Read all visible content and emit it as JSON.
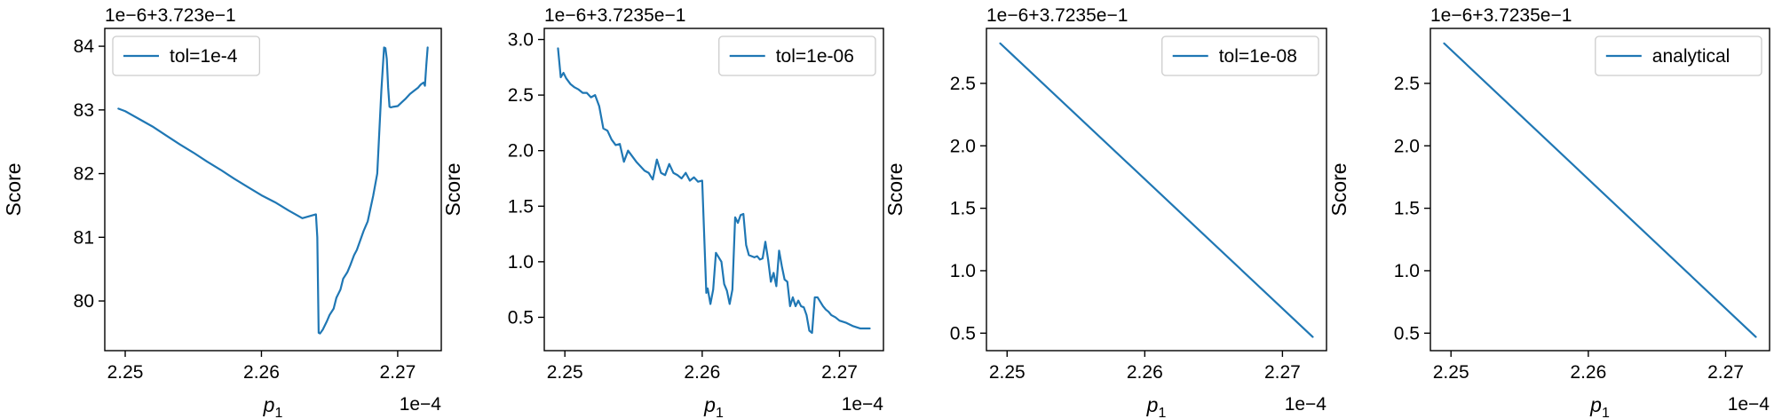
{
  "figure": {
    "colors": {
      "line": "#1f77b4",
      "axes": "#000000",
      "legend_border": "#cccccc",
      "background": "#ffffff"
    }
  },
  "chart_data": [
    {
      "type": "line",
      "offset_label": "1e−6+3.723e−1",
      "xlabel_base": "p",
      "xlabel_sub": "1",
      "ylabel": "Score",
      "x_offset_label": "1e−4",
      "xlim": [
        2.2485,
        2.2732
      ],
      "ylim": [
        79.22,
        84.28
      ],
      "xticks": [
        2.25,
        2.26,
        2.27
      ],
      "xtick_labels": [
        "2.25",
        "2.26",
        "2.27"
      ],
      "yticks": [
        80,
        81,
        82,
        83,
        84
      ],
      "ytick_labels": [
        "80",
        "81",
        "82",
        "83",
        "84"
      ],
      "legend": {
        "position": "upper left",
        "label": "tol=1e-4"
      },
      "series": [
        {
          "name": "tol=1e-4",
          "x": [
            2.2495,
            2.25,
            2.251,
            2.252,
            2.253,
            2.254,
            2.255,
            2.256,
            2.257,
            2.258,
            2.259,
            2.26,
            2.261,
            2.262,
            2.263,
            2.264,
            2.2641,
            2.2642,
            2.2643,
            2.2645,
            2.2648,
            2.265,
            2.2653,
            2.2655,
            2.2658,
            2.266,
            2.2663,
            2.2665,
            2.2668,
            2.267,
            2.2673,
            2.2675,
            2.2678,
            2.268,
            2.2682,
            2.2685,
            2.2688,
            2.269,
            2.2691,
            2.2692,
            2.2693,
            2.2694,
            2.2695,
            2.2697,
            2.27,
            2.2703,
            2.2706,
            2.2709,
            2.2712,
            2.2715,
            2.2717,
            2.2719,
            2.272,
            2.2721,
            2.2722
          ],
          "y": [
            83.02,
            82.98,
            82.86,
            82.74,
            82.6,
            82.46,
            82.33,
            82.19,
            82.06,
            81.92,
            81.79,
            81.66,
            81.55,
            81.42,
            81.3,
            81.36,
            81.0,
            79.5,
            79.49,
            79.55,
            79.68,
            79.78,
            79.88,
            80.05,
            80.18,
            80.35,
            80.45,
            80.55,
            80.72,
            80.8,
            80.98,
            81.1,
            81.25,
            81.45,
            81.65,
            82.0,
            83.3,
            83.98,
            83.97,
            83.8,
            83.35,
            83.05,
            83.04,
            83.05,
            83.06,
            83.12,
            83.18,
            83.25,
            83.3,
            83.35,
            83.4,
            83.43,
            83.38,
            83.7,
            83.98
          ]
        }
      ]
    },
    {
      "type": "line",
      "offset_label": "1e−6+3.7235e−1",
      "xlabel_base": "p",
      "xlabel_sub": "1",
      "ylabel": "Score",
      "x_offset_label": "1e−4",
      "xlim": [
        2.2485,
        2.2732
      ],
      "ylim": [
        0.2,
        3.1
      ],
      "xticks": [
        2.25,
        2.26,
        2.27
      ],
      "xtick_labels": [
        "2.25",
        "2.26",
        "2.27"
      ],
      "yticks": [
        0.5,
        1.0,
        1.5,
        2.0,
        2.5,
        3.0
      ],
      "ytick_labels": [
        "0.5",
        "1.0",
        "1.5",
        "2.0",
        "2.5",
        "3.0"
      ],
      "legend": {
        "position": "upper right",
        "label": "tol=1e-06"
      },
      "series": [
        {
          "name": "tol=1e-06",
          "x": [
            2.2495,
            2.2497,
            2.2499,
            2.2501,
            2.2504,
            2.2507,
            2.251,
            2.2513,
            2.2516,
            2.2519,
            2.2522,
            2.2525,
            2.2528,
            2.2531,
            2.2534,
            2.2537,
            2.254,
            2.2543,
            2.2546,
            2.2549,
            2.2552,
            2.2555,
            2.2558,
            2.2561,
            2.2564,
            2.2567,
            2.257,
            2.2573,
            2.2576,
            2.2579,
            2.2582,
            2.2585,
            2.2588,
            2.2591,
            2.2594,
            2.2597,
            2.26,
            2.2603,
            2.2604,
            2.2606,
            2.2608,
            2.261,
            2.2612,
            2.2614,
            2.2616,
            2.2618,
            2.262,
            2.2622,
            2.2624,
            2.2626,
            2.2628,
            2.263,
            2.2632,
            2.2634,
            2.2636,
            2.2638,
            2.264,
            2.2642,
            2.2644,
            2.2646,
            2.2648,
            2.265,
            2.2652,
            2.2654,
            2.2656,
            2.2658,
            2.266,
            2.2662,
            2.2664,
            2.2666,
            2.2668,
            2.267,
            2.2672,
            2.2674,
            2.2676,
            2.2678,
            2.268,
            2.2682,
            2.2684,
            2.2686,
            2.2688,
            2.269,
            2.2692,
            2.2694,
            2.2697,
            2.27,
            2.2705,
            2.271,
            2.2715,
            2.272,
            2.2722
          ],
          "y": [
            2.92,
            2.66,
            2.7,
            2.65,
            2.6,
            2.57,
            2.55,
            2.52,
            2.52,
            2.48,
            2.5,
            2.4,
            2.2,
            2.18,
            2.1,
            2.05,
            2.06,
            1.9,
            2.0,
            1.95,
            1.9,
            1.86,
            1.82,
            1.8,
            1.74,
            1.92,
            1.8,
            1.78,
            1.88,
            1.8,
            1.78,
            1.75,
            1.8,
            1.73,
            1.76,
            1.72,
            1.73,
            0.72,
            0.76,
            0.62,
            0.75,
            1.08,
            1.04,
            1.0,
            0.8,
            0.74,
            0.62,
            0.75,
            1.4,
            1.35,
            1.42,
            1.43,
            1.15,
            1.06,
            1.05,
            1.04,
            1.05,
            1.02,
            1.03,
            1.18,
            1.02,
            0.82,
            0.9,
            0.78,
            1.1,
            0.96,
            0.84,
            0.82,
            0.6,
            0.68,
            0.6,
            0.65,
            0.6,
            0.59,
            0.52,
            0.38,
            0.36,
            0.68,
            0.68,
            0.64,
            0.6,
            0.57,
            0.55,
            0.52,
            0.5,
            0.47,
            0.45,
            0.42,
            0.4,
            0.4,
            0.4
          ]
        }
      ]
    },
    {
      "type": "line",
      "offset_label": "1e−6+3.7235e−1",
      "xlabel_base": "p",
      "xlabel_sub": "1",
      "ylabel": "Score",
      "x_offset_label": "1e−4",
      "xlim": [
        2.2485,
        2.2732
      ],
      "ylim": [
        0.36,
        2.94
      ],
      "xticks": [
        2.25,
        2.26,
        2.27
      ],
      "xtick_labels": [
        "2.25",
        "2.26",
        "2.27"
      ],
      "yticks": [
        0.5,
        1.0,
        1.5,
        2.0,
        2.5
      ],
      "ytick_labels": [
        "0.5",
        "1.0",
        "1.5",
        "2.0",
        "2.5"
      ],
      "legend": {
        "position": "upper right",
        "label": "tol=1e-08"
      },
      "series": [
        {
          "name": "tol=1e-08",
          "x": [
            2.2495,
            2.2722
          ],
          "y": [
            2.82,
            0.47
          ]
        }
      ]
    },
    {
      "type": "line",
      "offset_label": "1e−6+3.7235e−1",
      "xlabel_base": "p",
      "xlabel_sub": "1",
      "ylabel": "Score",
      "x_offset_label": "1e−4",
      "xlim": [
        2.2485,
        2.2732
      ],
      "ylim": [
        0.36,
        2.94
      ],
      "xticks": [
        2.25,
        2.26,
        2.27
      ],
      "xtick_labels": [
        "2.25",
        "2.26",
        "2.27"
      ],
      "yticks": [
        0.5,
        1.0,
        1.5,
        2.0,
        2.5
      ],
      "ytick_labels": [
        "0.5",
        "1.0",
        "1.5",
        "2.0",
        "2.5"
      ],
      "legend": {
        "position": "upper right",
        "label": "analytical"
      },
      "series": [
        {
          "name": "analytical",
          "x": [
            2.2495,
            2.2722
          ],
          "y": [
            2.82,
            0.47
          ]
        }
      ]
    }
  ]
}
